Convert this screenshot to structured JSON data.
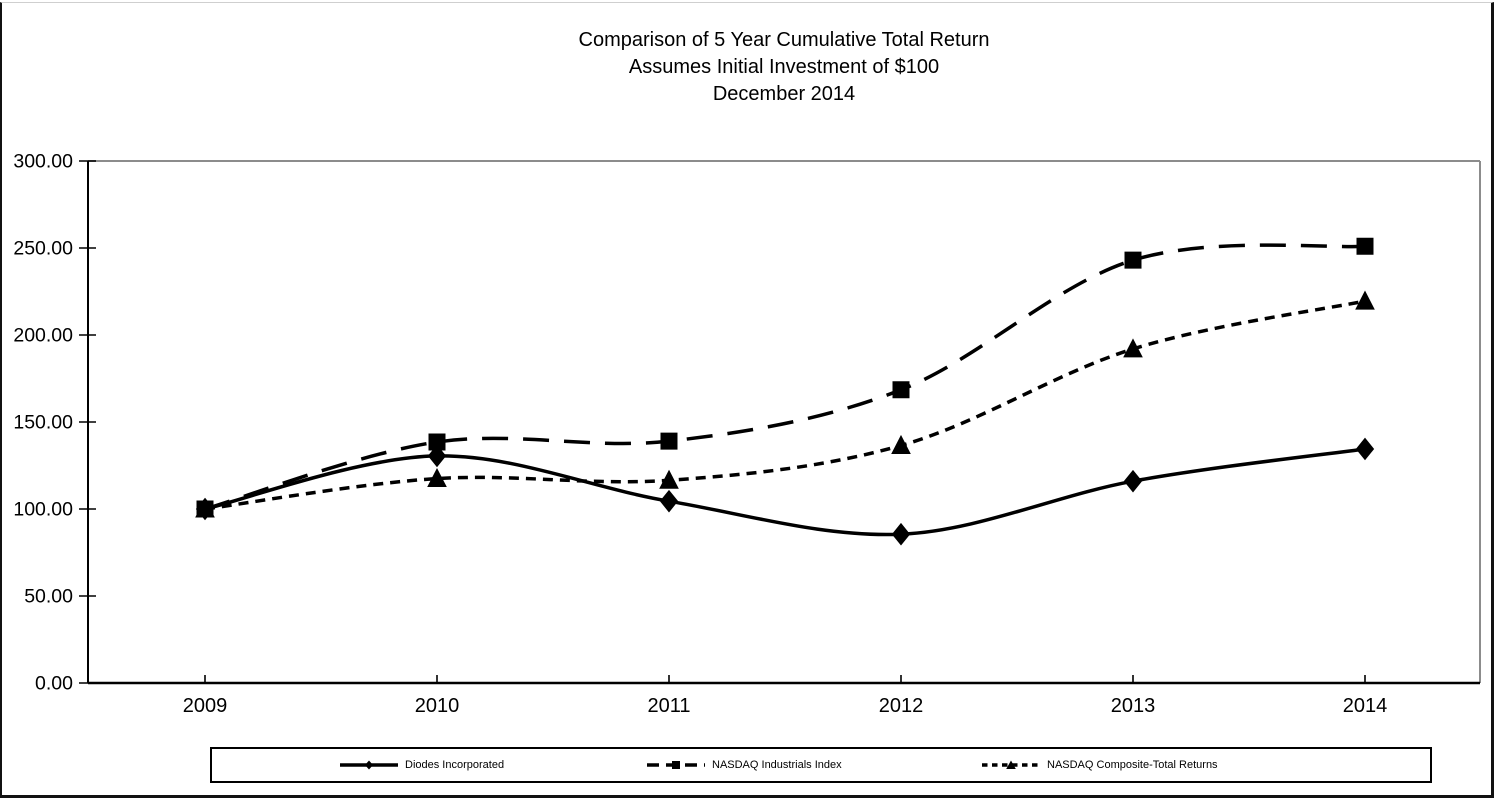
{
  "chart_data": {
    "type": "line",
    "title": "Comparison of 5 Year Cumulative Total Return",
    "subtitle": "Assumes Initial Investment of $100",
    "date_label": "December 2014",
    "categories": [
      "2009",
      "2010",
      "2011",
      "2012",
      "2013",
      "2014"
    ],
    "series": [
      {
        "name": "Diodes Incorporated",
        "line_style": "solid",
        "marker": "diamond",
        "values": [
          100.0,
          130.5,
          104.5,
          85.5,
          116.0,
          134.5
        ]
      },
      {
        "name": "NASDAQ Industrials Index",
        "line_style": "long-dash",
        "marker": "square",
        "values": [
          100.0,
          138.5,
          139.0,
          168.5,
          243.0,
          251.0
        ]
      },
      {
        "name": "NASDAQ Composite-Total Returns",
        "line_style": "short-dash",
        "marker": "triangle",
        "values": [
          100.0,
          117.5,
          116.5,
          136.5,
          192.0,
          219.5
        ]
      }
    ],
    "xlabel": "",
    "ylabel": "",
    "ylim": [
      0,
      300
    ],
    "y_tick_step": 50,
    "y_tick_labels": [
      "0.00",
      "50.00",
      "100.00",
      "150.00",
      "200.00",
      "250.00",
      "300.00"
    ],
    "grid": false,
    "legend_position": "bottom",
    "colors": {
      "series": "#000000",
      "axis": "#000000",
      "plot_border": "#8c8c8c",
      "background": "#ffffff"
    }
  }
}
